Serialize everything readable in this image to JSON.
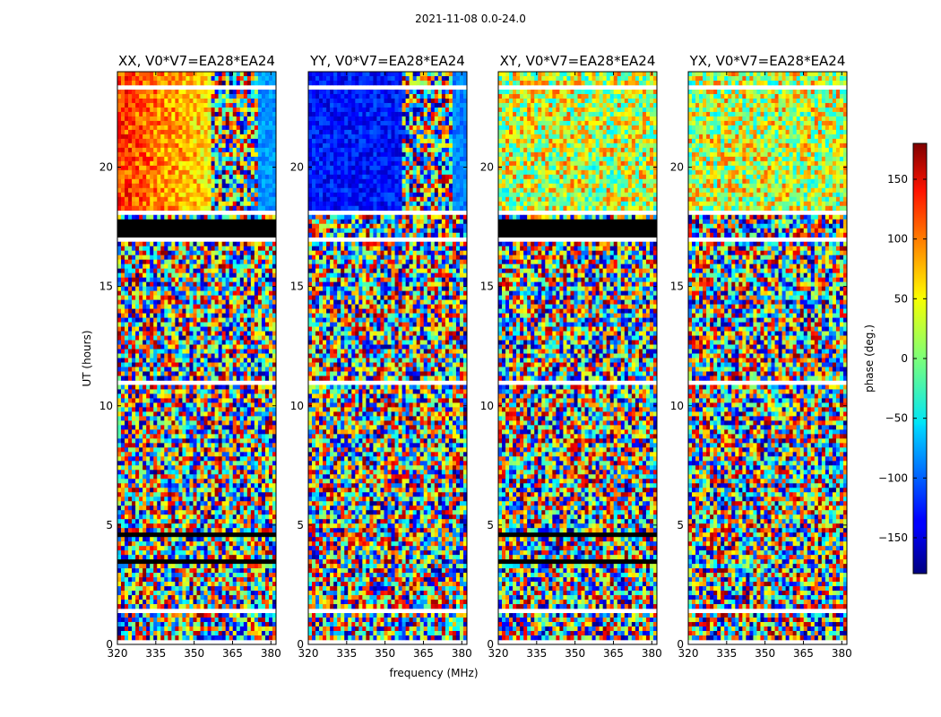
{
  "figure": {
    "suptitle": "2021-11-08 0.0-24.0",
    "xlabel": "frequency (MHz)",
    "ylabel": "UT (hours)",
    "colorbar_label": "phase (deg.)"
  },
  "chart_data": {
    "type": "heatmap",
    "colormap": "jet",
    "xlim": [
      320,
      382
    ],
    "ylim": [
      0,
      24
    ],
    "x_ticks": [
      "320",
      "335",
      "350",
      "365",
      "380"
    ],
    "y_ticks": [
      "0",
      "5",
      "10",
      "15",
      "20"
    ],
    "colorbar": {
      "range": [
        -180,
        180
      ],
      "ticks": [
        "150",
        "100",
        "50",
        "0",
        "−50",
        "−100",
        "−150"
      ],
      "label": "phase (deg.)"
    },
    "panels": [
      {
        "title": "XX, V0*V7=EA28*EA24",
        "pol": "XX"
      },
      {
        "title": "YY, V0*V7=EA28*EA24",
        "pol": "YY"
      },
      {
        "title": "XY, V0*V7=EA28*EA24",
        "pol": "XY"
      },
      {
        "title": "YX, V0*V7=EA28*EA24",
        "pol": "YX"
      }
    ],
    "flagged_color": "#000000",
    "blank_color": "#ffffff"
  }
}
